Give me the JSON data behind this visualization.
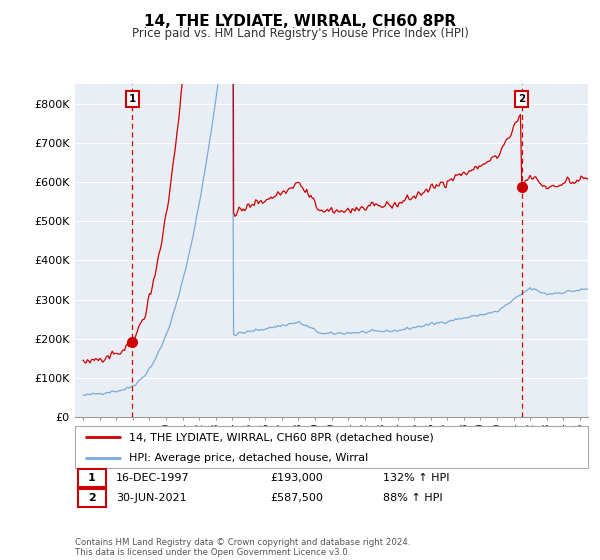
{
  "title": "14, THE LYDIATE, WIRRAL, CH60 8PR",
  "subtitle": "Price paid vs. HM Land Registry's House Price Index (HPI)",
  "ylim": [
    0,
    850000
  ],
  "yticks": [
    0,
    100000,
    200000,
    300000,
    400000,
    500000,
    600000,
    700000,
    800000
  ],
  "ytick_labels": [
    "£0",
    "£100K",
    "£200K",
    "£300K",
    "£400K",
    "£500K",
    "£600K",
    "£700K",
    "£800K"
  ],
  "sale1_x": 1997.958,
  "sale1_y": 193000,
  "sale2_x": 2021.5,
  "sale2_y": 587500,
  "line_color_red": "#cc0000",
  "line_color_blue": "#7aabdb",
  "background_color": "#ffffff",
  "plot_bg_color": "#e8eef4",
  "grid_color": "#ffffff",
  "legend_label_red": "14, THE LYDIATE, WIRRAL, CH60 8PR (detached house)",
  "legend_label_blue": "HPI: Average price, detached house, Wirral",
  "sale1_text": "16-DEC-1997",
  "sale1_price_text": "£193,000",
  "sale1_hpi_text": "132% ↑ HPI",
  "sale2_text": "30-JUN-2021",
  "sale2_price_text": "£587,500",
  "sale2_hpi_text": "88% ↑ HPI",
  "copyright_text": "Contains HM Land Registry data © Crown copyright and database right 2024.\nThis data is licensed under the Open Government Licence v3.0.",
  "xlim_left": 1994.5,
  "xlim_right": 2025.5
}
